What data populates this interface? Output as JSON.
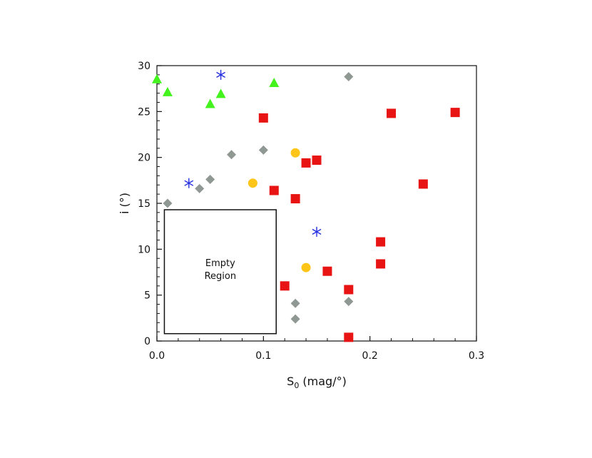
{
  "chart_data": {
    "type": "scatter",
    "xlabel": {
      "main": "S",
      "sub": "0",
      "rest": " (mag/°)"
    },
    "ylabel": "i (°)",
    "xlim": [
      0,
      0.3
    ],
    "ylim": [
      0,
      30
    ],
    "xticks": [
      0.0,
      0.1,
      0.2,
      0.3
    ],
    "xtick_labels": [
      "0.0",
      "0.1",
      "0.2",
      "0.3"
    ],
    "yticks": [
      0,
      5,
      10,
      15,
      20,
      25,
      30
    ],
    "ytick_labels": [
      "0",
      "5",
      "10",
      "15",
      "20",
      "25",
      "30"
    ],
    "grid": false,
    "legend": "none",
    "annotation": {
      "lines": [
        "Empty",
        "Region"
      ],
      "x_range": [
        0.007,
        0.112
      ],
      "y_range": [
        0.8,
        14.3
      ]
    },
    "series": [
      {
        "marker": "square",
        "color": "#e81414",
        "points": [
          [
            0.1,
            24.3
          ],
          [
            0.11,
            16.4
          ],
          [
            0.12,
            6.0
          ],
          [
            0.13,
            15.5
          ],
          [
            0.14,
            19.4
          ],
          [
            0.15,
            19.7
          ],
          [
            0.16,
            7.6
          ],
          [
            0.18,
            5.6
          ],
          [
            0.18,
            0.4
          ],
          [
            0.21,
            10.8
          ],
          [
            0.21,
            8.4
          ],
          [
            0.22,
            24.8
          ],
          [
            0.25,
            17.1
          ],
          [
            0.28,
            24.9
          ]
        ]
      },
      {
        "marker": "diamond",
        "color": "#8f9893",
        "points": [
          [
            0.01,
            15.0
          ],
          [
            0.04,
            16.6
          ],
          [
            0.05,
            17.6
          ],
          [
            0.07,
            20.3
          ],
          [
            0.1,
            20.8
          ],
          [
            0.13,
            4.1
          ],
          [
            0.13,
            2.4
          ],
          [
            0.18,
            4.3
          ],
          [
            0.18,
            28.8
          ]
        ]
      },
      {
        "marker": "triangle",
        "color": "#44f21e",
        "points": [
          [
            0.0,
            28.5
          ],
          [
            0.01,
            27.1
          ],
          [
            0.05,
            25.8
          ],
          [
            0.06,
            26.9
          ],
          [
            0.11,
            28.1
          ]
        ]
      },
      {
        "marker": "asterisk",
        "color": "#2530e0",
        "points": [
          [
            0.03,
            17.2
          ],
          [
            0.06,
            29.0
          ],
          [
            0.15,
            11.9
          ]
        ]
      },
      {
        "marker": "circle",
        "color": "#fcc517",
        "points": [
          [
            0.09,
            17.2
          ],
          [
            0.13,
            20.5
          ],
          [
            0.14,
            8.0
          ]
        ]
      }
    ]
  }
}
